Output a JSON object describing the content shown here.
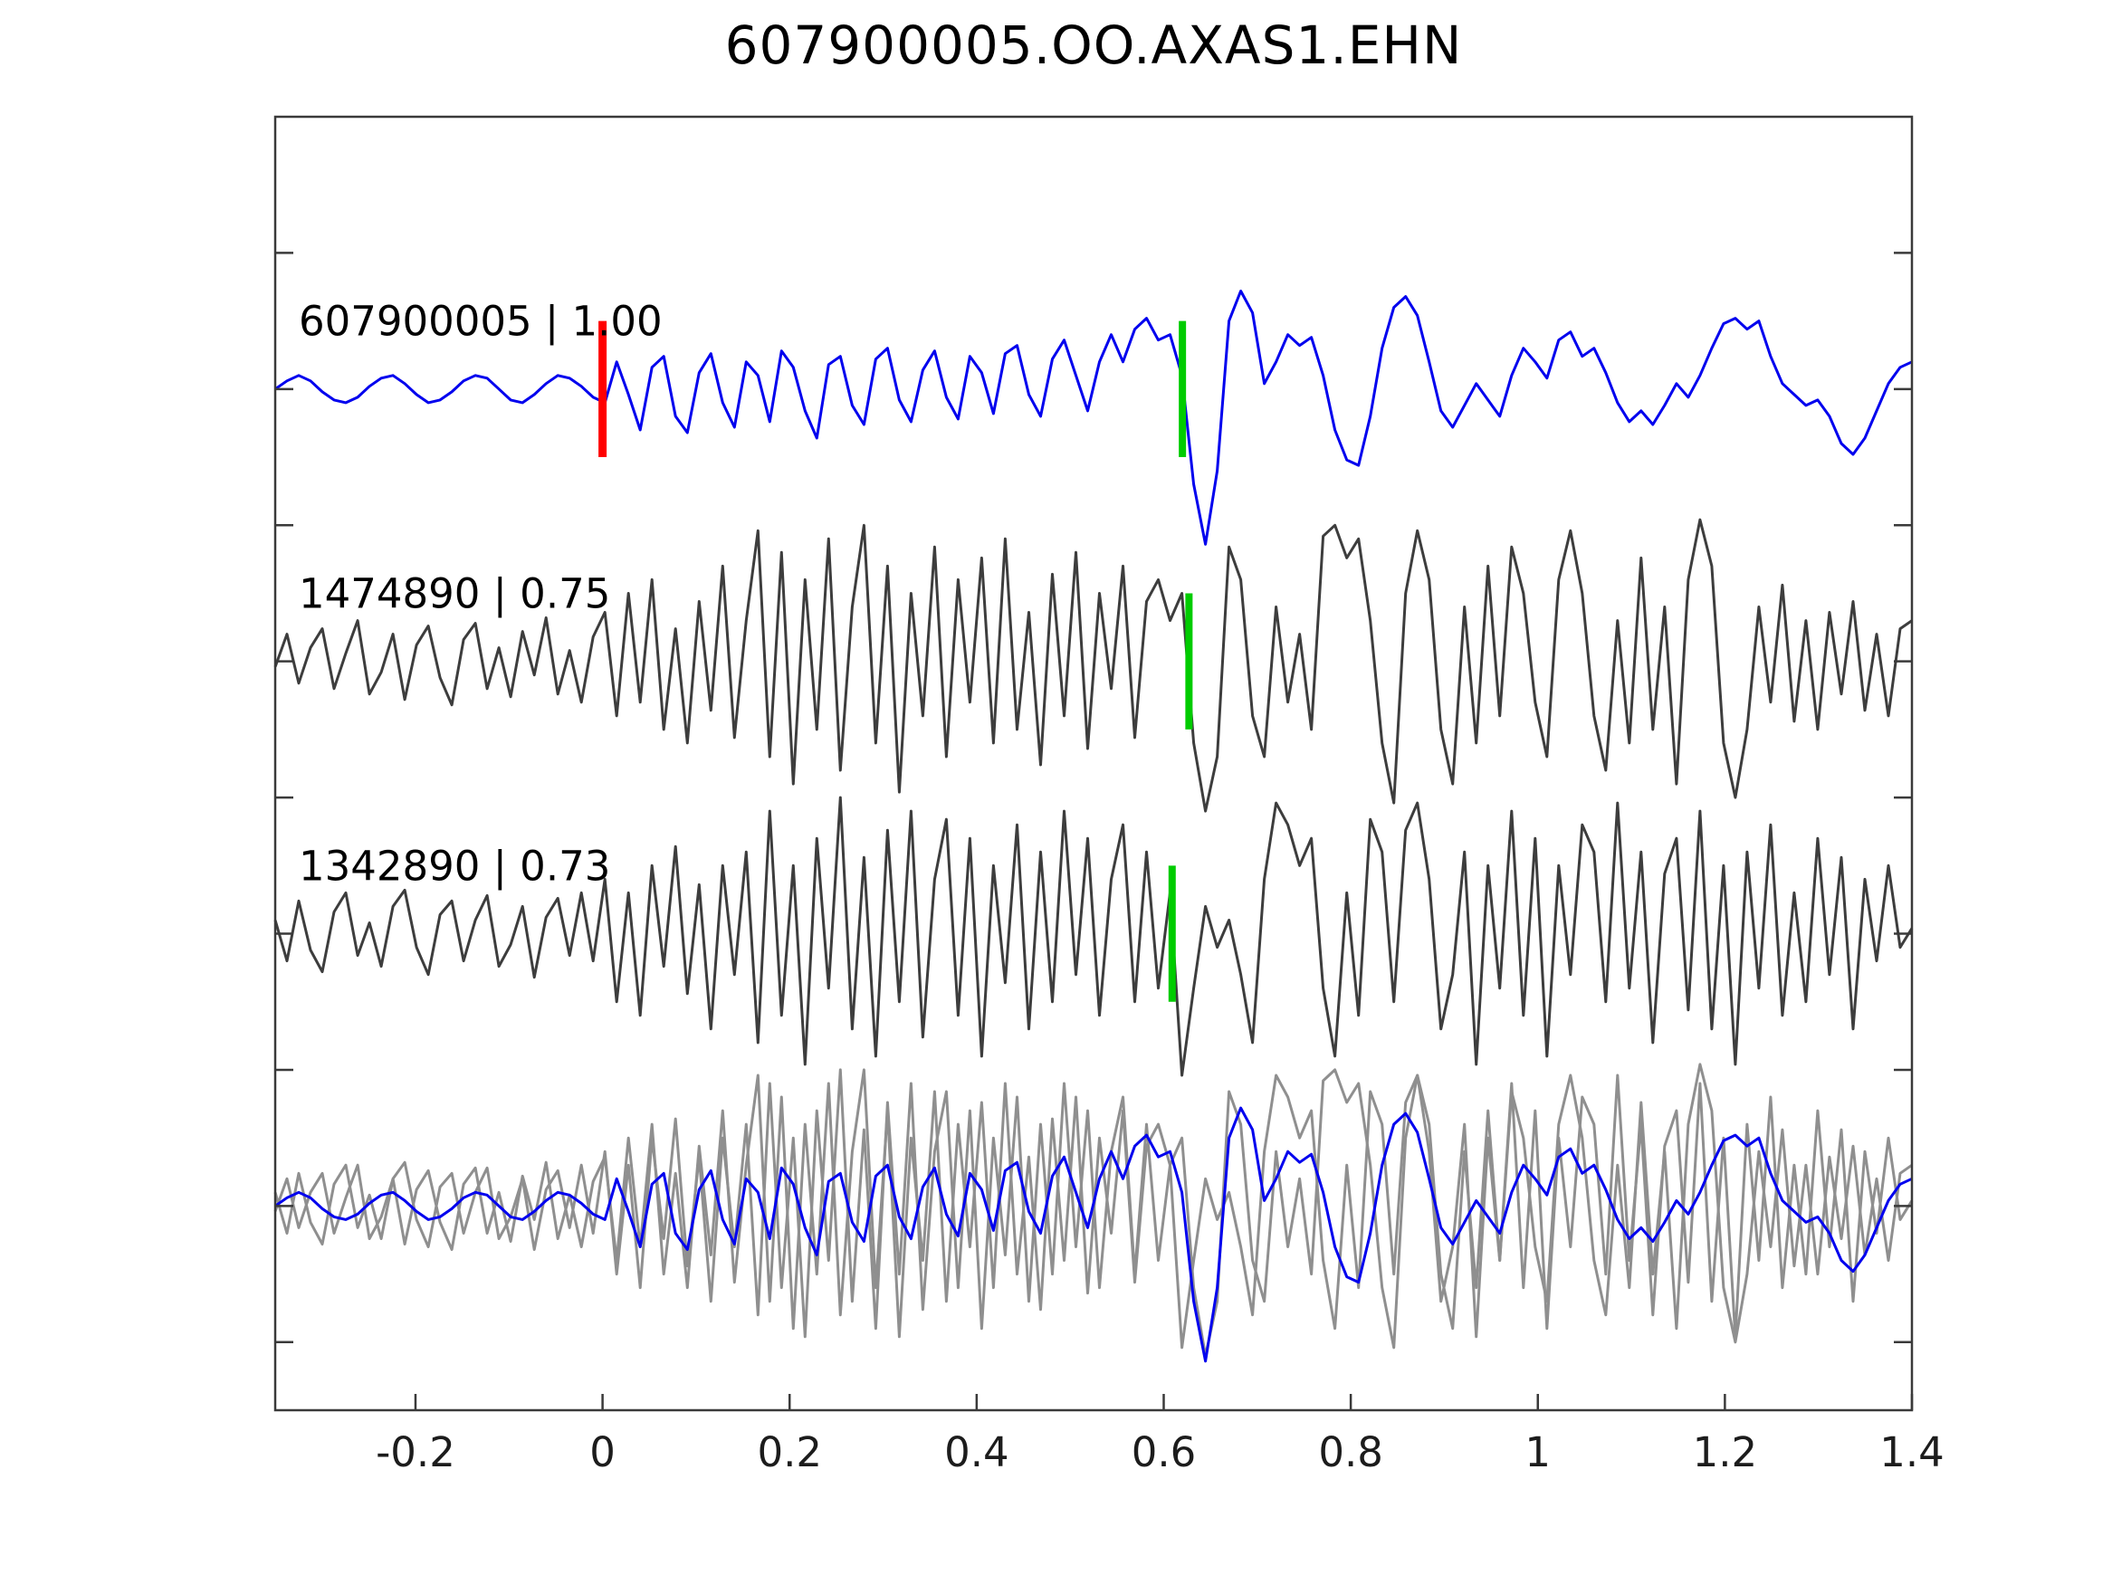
{
  "title": "607900005.OO.AXAS1.EHN",
  "chart_data": {
    "type": "line",
    "title": "607900005.OO.AXAS1.EHN",
    "xlabel": "",
    "ylabel": "",
    "grid": false,
    "legend": "none",
    "xlim": [
      -0.35,
      1.4
    ],
    "ylim": [
      -3.75,
      1.0
    ],
    "x_tick_values": [
      -0.2,
      0,
      0.2,
      0.4,
      0.6,
      0.8,
      1,
      1.2,
      1.4
    ],
    "x_tick_labels": [
      "-0.2",
      "0",
      "0.2",
      "0.4",
      "0.6",
      "0.8",
      "1",
      "1.2",
      "1.4"
    ],
    "y_tick_values": [
      0.5,
      0,
      -0.5,
      -1,
      -1.5,
      -2,
      -2.5,
      -3,
      -3.5
    ],
    "pick_half_height": 0.25,
    "colors": {
      "template_trace": "#0000ee",
      "detection_trace": "#3d3d3d",
      "overlay_gray": "#8f8f8f",
      "pick_red": "#ff0000",
      "pick_green": "#00cc00",
      "axis": "#3a3a3a",
      "tick_label": "#1c1c1c"
    },
    "traces": [
      {
        "label": "607900005 | 1.00",
        "color": "#0000ee",
        "offset": 0,
        "picks": [
          {
            "t": 0.0,
            "color": "#ff0000",
            "width": 9
          },
          {
            "t": 0.62,
            "color": "#00cc00",
            "width": 8
          }
        ],
        "y": [
          0.0,
          0.03,
          0.05,
          0.03,
          -0.01,
          -0.04,
          -0.05,
          -0.03,
          0.01,
          0.04,
          0.05,
          0.02,
          -0.02,
          -0.05,
          -0.04,
          -0.01,
          0.03,
          0.05,
          0.04,
          0.0,
          -0.04,
          -0.05,
          -0.02,
          0.02,
          0.05,
          0.04,
          0.01,
          -0.03,
          -0.05,
          0.1,
          -0.02,
          -0.15,
          0.08,
          0.12,
          -0.1,
          -0.16,
          0.06,
          0.13,
          -0.05,
          -0.14,
          0.1,
          0.05,
          -0.12,
          0.14,
          0.08,
          -0.08,
          -0.18,
          0.09,
          0.12,
          -0.06,
          -0.13,
          0.11,
          0.15,
          -0.04,
          -0.12,
          0.07,
          0.14,
          -0.03,
          -0.11,
          0.12,
          0.06,
          -0.09,
          0.13,
          0.16,
          -0.02,
          -0.1,
          0.11,
          0.18,
          0.05,
          -0.08,
          0.1,
          0.2,
          0.1,
          0.22,
          0.26,
          0.18,
          0.2,
          0.05,
          -0.35,
          -0.57,
          -0.3,
          0.25,
          0.36,
          0.28,
          0.02,
          0.1,
          0.2,
          0.16,
          0.19,
          0.05,
          -0.15,
          -0.26,
          -0.28,
          -0.1,
          0.15,
          0.3,
          0.34,
          0.27,
          0.1,
          -0.08,
          -0.14,
          -0.06,
          0.02,
          -0.04,
          -0.1,
          0.05,
          0.15,
          0.1,
          0.04,
          0.18,
          0.21,
          0.12,
          0.15,
          0.06,
          -0.05,
          -0.12,
          -0.08,
          -0.13,
          -0.06,
          0.02,
          -0.03,
          0.05,
          0.15,
          0.24,
          0.26,
          0.22,
          0.25,
          0.12,
          0.02,
          -0.02,
          -0.06,
          -0.04,
          -0.1,
          -0.2,
          -0.24,
          -0.18,
          -0.08,
          0.02,
          0.08,
          0.1
        ]
      },
      {
        "label": "1474890 | 0.75",
        "color": "#3d3d3d",
        "offset": -1,
        "picks": [
          {
            "t": 0.627,
            "color": "#00cc00",
            "width": 8
          }
        ],
        "y": [
          -0.02,
          0.1,
          -0.08,
          0.05,
          0.12,
          -0.1,
          0.03,
          0.15,
          -0.12,
          -0.04,
          0.1,
          -0.14,
          0.06,
          0.13,
          -0.06,
          -0.16,
          0.08,
          0.14,
          -0.1,
          0.05,
          -0.13,
          0.11,
          -0.05,
          0.16,
          -0.12,
          0.04,
          -0.15,
          0.09,
          0.18,
          -0.2,
          0.25,
          -0.15,
          0.3,
          -0.25,
          0.12,
          -0.3,
          0.22,
          -0.18,
          0.35,
          -0.28,
          0.15,
          0.48,
          -0.35,
          0.4,
          -0.45,
          0.3,
          -0.25,
          0.45,
          -0.4,
          0.2,
          0.5,
          -0.3,
          0.35,
          -0.48,
          0.25,
          -0.2,
          0.42,
          -0.35,
          0.3,
          -0.15,
          0.38,
          -0.3,
          0.45,
          -0.25,
          0.18,
          -0.38,
          0.32,
          -0.2,
          0.4,
          -0.32,
          0.25,
          -0.1,
          0.35,
          -0.28,
          0.22,
          0.3,
          0.15,
          0.25,
          -0.3,
          -0.55,
          -0.35,
          0.42,
          0.3,
          -0.2,
          -0.35,
          0.2,
          -0.15,
          0.1,
          -0.25,
          0.46,
          0.5,
          0.38,
          0.45,
          0.15,
          -0.3,
          -0.52,
          0.25,
          0.48,
          0.3,
          -0.25,
          -0.45,
          0.2,
          -0.3,
          0.35,
          -0.2,
          0.42,
          0.25,
          -0.15,
          -0.35,
          0.3,
          0.48,
          0.25,
          -0.2,
          -0.4,
          0.15,
          -0.3,
          0.38,
          -0.25,
          0.2,
          -0.45,
          0.3,
          0.52,
          0.35,
          -0.3,
          -0.5,
          -0.25,
          0.2,
          -0.15,
          0.28,
          -0.22,
          0.15,
          -0.25,
          0.18,
          -0.12,
          0.22,
          -0.18,
          0.1,
          -0.2,
          0.12,
          0.15
        ]
      },
      {
        "label": "1342890 | 0.73",
        "color": "#3d3d3d",
        "offset": -2,
        "picks": [
          {
            "t": 0.609,
            "color": "#00cc00",
            "width": 8
          }
        ],
        "y": [
          0.05,
          -0.1,
          0.12,
          -0.06,
          -0.14,
          0.08,
          0.15,
          -0.08,
          0.04,
          -0.12,
          0.1,
          0.16,
          -0.05,
          -0.15,
          0.07,
          0.12,
          -0.1,
          0.05,
          0.14,
          -0.12,
          -0.04,
          0.1,
          -0.16,
          0.06,
          0.13,
          -0.08,
          0.15,
          -0.1,
          0.2,
          -0.25,
          0.15,
          -0.3,
          0.25,
          -0.12,
          0.32,
          -0.22,
          0.18,
          -0.35,
          0.25,
          -0.15,
          0.3,
          -0.4,
          0.45,
          -0.3,
          0.25,
          -0.48,
          0.35,
          -0.2,
          0.5,
          -0.35,
          0.28,
          -0.45,
          0.38,
          -0.25,
          0.45,
          -0.38,
          0.2,
          0.42,
          -0.3,
          0.35,
          -0.45,
          0.25,
          -0.18,
          0.4,
          -0.35,
          0.3,
          -0.25,
          0.45,
          -0.15,
          0.35,
          -0.3,
          0.2,
          0.4,
          -0.25,
          0.3,
          -0.2,
          0.15,
          -0.52,
          -0.2,
          0.1,
          -0.05,
          0.05,
          -0.15,
          -0.4,
          0.2,
          0.48,
          0.4,
          0.25,
          0.35,
          -0.2,
          -0.45,
          0.15,
          -0.3,
          0.42,
          0.3,
          -0.25,
          0.38,
          0.48,
          0.2,
          -0.35,
          -0.15,
          0.3,
          -0.48,
          0.25,
          -0.2,
          0.45,
          -0.3,
          0.35,
          -0.45,
          0.25,
          -0.15,
          0.4,
          0.3,
          -0.25,
          0.48,
          -0.2,
          0.3,
          -0.4,
          0.22,
          0.35,
          -0.28,
          0.45,
          -0.35,
          0.25,
          -0.48,
          0.3,
          -0.2,
          0.4,
          -0.3,
          0.15,
          -0.25,
          0.35,
          -0.15,
          0.28,
          -0.35,
          0.2,
          -0.1,
          0.25,
          -0.05,
          0.02
        ]
      },
      {
        "label": "",
        "offset": -3,
        "picks": [],
        "overlay": [
          {
            "ref": 1,
            "color": "#8f8f8f"
          },
          {
            "ref": 2,
            "color": "#8f8f8f"
          },
          {
            "ref": 0,
            "color": "#0000ee"
          }
        ]
      }
    ]
  }
}
